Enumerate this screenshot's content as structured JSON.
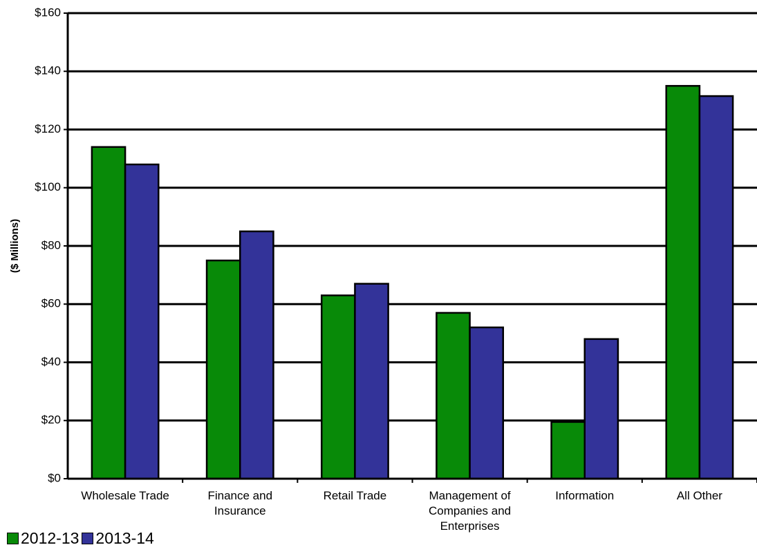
{
  "chart_data": {
    "type": "bar",
    "y_label": "($ Millions)",
    "categories": [
      "Wholesale Trade",
      "Finance and Insurance",
      "Retail Trade",
      "Management of Companies and Enterprises",
      "Information",
      "All Other"
    ],
    "series": [
      {
        "name": "2012-13",
        "color": "#088a08",
        "values": [
          114,
          75,
          63,
          57,
          19.5,
          135
        ]
      },
      {
        "name": "2013-14",
        "color": "#333399",
        "values": [
          108,
          85,
          67,
          52,
          48,
          131.5
        ]
      }
    ],
    "ylim": [
      0,
      160
    ],
    "yticks": [
      {
        "value": 0,
        "label": "$0"
      },
      {
        "value": 20,
        "label": "$20"
      },
      {
        "value": 40,
        "label": "$40"
      },
      {
        "value": 60,
        "label": "$60"
      },
      {
        "value": 80,
        "label": "$80"
      },
      {
        "value": 100,
        "label": "$100"
      },
      {
        "value": 120,
        "label": "$120"
      },
      {
        "value": 140,
        "label": "$140"
      },
      {
        "value": 160,
        "label": "$160"
      }
    ],
    "grid": true
  }
}
